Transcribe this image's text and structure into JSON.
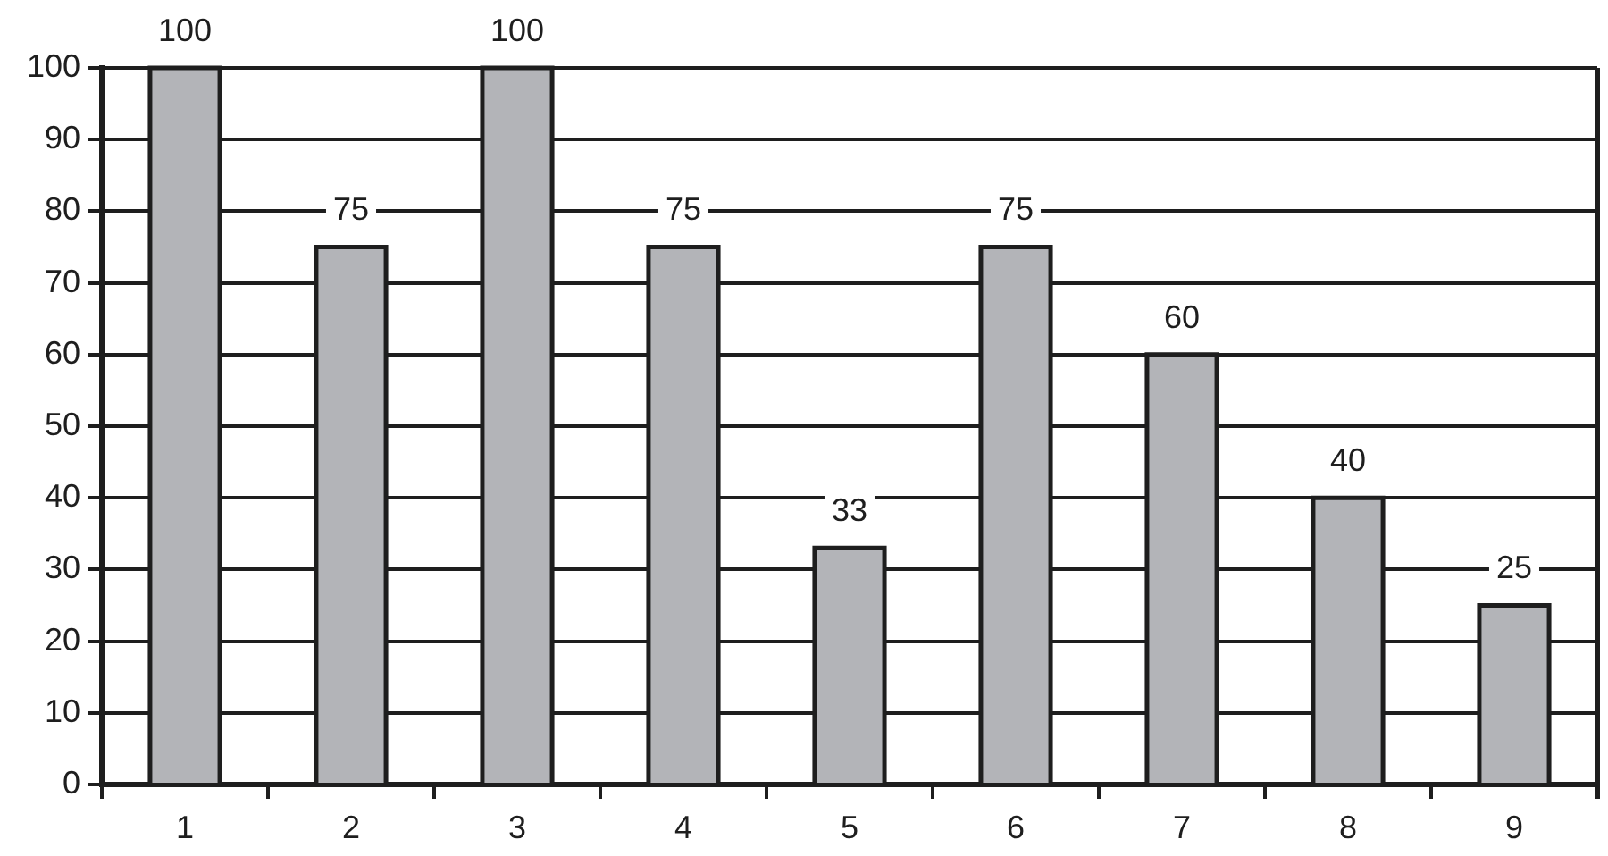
{
  "chart_data": {
    "type": "bar",
    "categories": [
      "1",
      "2",
      "3",
      "4",
      "5",
      "6",
      "7",
      "8",
      "9"
    ],
    "values": [
      100,
      75,
      100,
      75,
      33,
      75,
      60,
      40,
      25
    ],
    "color": "#b3b4b8",
    "ylim": [
      0,
      100
    ],
    "yticks": [
      0,
      10,
      20,
      30,
      40,
      50,
      60,
      70,
      80,
      90,
      100
    ],
    "grid": "y",
    "data_labels": true
  }
}
